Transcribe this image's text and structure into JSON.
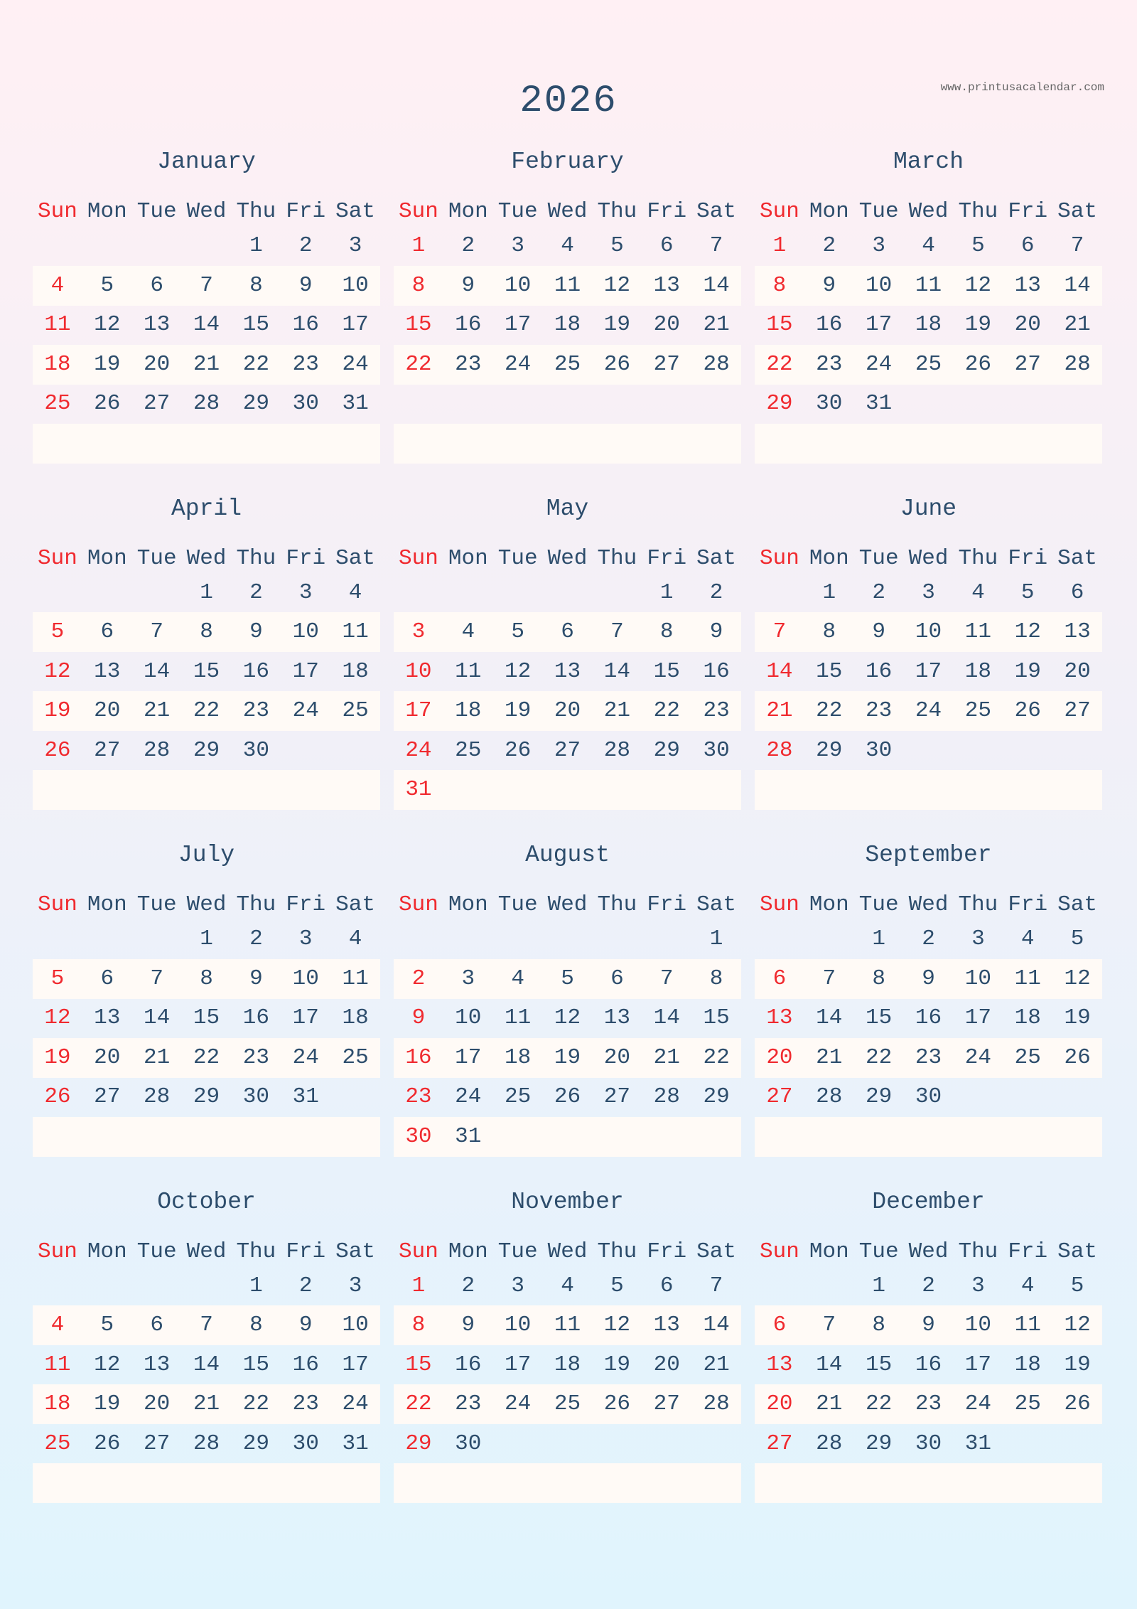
{
  "title": "2026",
  "website": "www.printusacalendar.com",
  "colors": {
    "text": "#2d4d6c",
    "sunday": "#f02a2f",
    "stripe": "#fffaf6"
  },
  "weekdays": [
    "Sun",
    "Mon",
    "Tue",
    "Wed",
    "Thu",
    "Fri",
    "Sat"
  ],
  "months": [
    {
      "name": "January",
      "weeks": [
        [
          null,
          null,
          null,
          null,
          1,
          2,
          3
        ],
        [
          4,
          5,
          6,
          7,
          8,
          9,
          10
        ],
        [
          11,
          12,
          13,
          14,
          15,
          16,
          17
        ],
        [
          18,
          19,
          20,
          21,
          22,
          23,
          24
        ],
        [
          25,
          26,
          27,
          28,
          29,
          30,
          31
        ],
        []
      ]
    },
    {
      "name": "February",
      "weeks": [
        [
          1,
          2,
          3,
          4,
          5,
          6,
          7
        ],
        [
          8,
          9,
          10,
          11,
          12,
          13,
          14
        ],
        [
          15,
          16,
          17,
          18,
          19,
          20,
          21
        ],
        [
          22,
          23,
          24,
          25,
          26,
          27,
          28
        ],
        [],
        []
      ]
    },
    {
      "name": "March",
      "weeks": [
        [
          1,
          2,
          3,
          4,
          5,
          6,
          7
        ],
        [
          8,
          9,
          10,
          11,
          12,
          13,
          14
        ],
        [
          15,
          16,
          17,
          18,
          19,
          20,
          21
        ],
        [
          22,
          23,
          24,
          25,
          26,
          27,
          28
        ],
        [
          29,
          30,
          31
        ],
        []
      ]
    },
    {
      "name": "April",
      "weeks": [
        [
          null,
          null,
          null,
          1,
          2,
          3,
          4
        ],
        [
          5,
          6,
          7,
          8,
          9,
          10,
          11
        ],
        [
          12,
          13,
          14,
          15,
          16,
          17,
          18
        ],
        [
          19,
          20,
          21,
          22,
          23,
          24,
          25
        ],
        [
          26,
          27,
          28,
          29,
          30
        ],
        []
      ]
    },
    {
      "name": "May",
      "weeks": [
        [
          null,
          null,
          null,
          null,
          null,
          1,
          2
        ],
        [
          3,
          4,
          5,
          6,
          7,
          8,
          9
        ],
        [
          10,
          11,
          12,
          13,
          14,
          15,
          16
        ],
        [
          17,
          18,
          19,
          20,
          21,
          22,
          23
        ],
        [
          24,
          25,
          26,
          27,
          28,
          29,
          30
        ],
        [
          31
        ]
      ]
    },
    {
      "name": "June",
      "weeks": [
        [
          null,
          1,
          2,
          3,
          4,
          5,
          6
        ],
        [
          7,
          8,
          9,
          10,
          11,
          12,
          13
        ],
        [
          14,
          15,
          16,
          17,
          18,
          19,
          20
        ],
        [
          21,
          22,
          23,
          24,
          25,
          26,
          27
        ],
        [
          28,
          29,
          30
        ],
        []
      ]
    },
    {
      "name": "July",
      "weeks": [
        [
          null,
          null,
          null,
          1,
          2,
          3,
          4
        ],
        [
          5,
          6,
          7,
          8,
          9,
          10,
          11
        ],
        [
          12,
          13,
          14,
          15,
          16,
          17,
          18
        ],
        [
          19,
          20,
          21,
          22,
          23,
          24,
          25
        ],
        [
          26,
          27,
          28,
          29,
          30,
          31
        ],
        []
      ]
    },
    {
      "name": "August",
      "weeks": [
        [
          null,
          null,
          null,
          null,
          null,
          null,
          1
        ],
        [
          2,
          3,
          4,
          5,
          6,
          7,
          8
        ],
        [
          9,
          10,
          11,
          12,
          13,
          14,
          15
        ],
        [
          16,
          17,
          18,
          19,
          20,
          21,
          22
        ],
        [
          23,
          24,
          25,
          26,
          27,
          28,
          29
        ],
        [
          30,
          31
        ]
      ]
    },
    {
      "name": "September",
      "weeks": [
        [
          null,
          null,
          1,
          2,
          3,
          4,
          5
        ],
        [
          6,
          7,
          8,
          9,
          10,
          11,
          12
        ],
        [
          13,
          14,
          15,
          16,
          17,
          18,
          19
        ],
        [
          20,
          21,
          22,
          23,
          24,
          25,
          26
        ],
        [
          27,
          28,
          29,
          30
        ],
        []
      ]
    },
    {
      "name": "October",
      "weeks": [
        [
          null,
          null,
          null,
          null,
          1,
          2,
          3
        ],
        [
          4,
          5,
          6,
          7,
          8,
          9,
          10
        ],
        [
          11,
          12,
          13,
          14,
          15,
          16,
          17
        ],
        [
          18,
          19,
          20,
          21,
          22,
          23,
          24
        ],
        [
          25,
          26,
          27,
          28,
          29,
          30,
          31
        ],
        []
      ]
    },
    {
      "name": "November",
      "weeks": [
        [
          1,
          2,
          3,
          4,
          5,
          6,
          7
        ],
        [
          8,
          9,
          10,
          11,
          12,
          13,
          14
        ],
        [
          15,
          16,
          17,
          18,
          19,
          20,
          21
        ],
        [
          22,
          23,
          24,
          25,
          26,
          27,
          28
        ],
        [
          29,
          30
        ],
        []
      ]
    },
    {
      "name": "December",
      "weeks": [
        [
          null,
          null,
          1,
          2,
          3,
          4,
          5
        ],
        [
          6,
          7,
          8,
          9,
          10,
          11,
          12
        ],
        [
          13,
          14,
          15,
          16,
          17,
          18,
          19
        ],
        [
          20,
          21,
          22,
          23,
          24,
          25,
          26
        ],
        [
          27,
          28,
          29,
          30,
          31
        ],
        []
      ]
    }
  ]
}
